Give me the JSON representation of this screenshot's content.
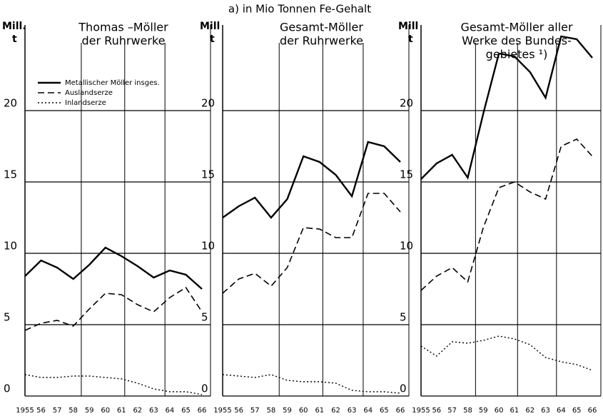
{
  "title": "a) in Mio Tonnen Fe-Gehalt",
  "chart_data": [
    {
      "type": "line",
      "title": [
        "Thomas –Möller",
        "der Ruhrwerke"
      ],
      "ylabel": [
        "Mill.",
        "t"
      ],
      "categories": [
        "1955",
        "56",
        "57",
        "58",
        "59",
        "60",
        "61",
        "62",
        "63",
        "64",
        "65",
        "66"
      ],
      "ylim": [
        0,
        26
      ],
      "yticks": [
        0,
        5,
        10,
        15,
        20
      ],
      "grid": true,
      "legend": "upper left",
      "series": [
        {
          "name": "Metallischer Möller insges.",
          "color": "#000000",
          "dash": "solid",
          "values": [
            8.4,
            9.5,
            9.0,
            8.2,
            9.2,
            10.4,
            9.8,
            9.1,
            8.3,
            8.8,
            8.5,
            7.5
          ]
        },
        {
          "name": "Auslandserze",
          "color": "#000000",
          "dash": "dashed",
          "values": [
            4.6,
            5.1,
            5.3,
            4.9,
            6.1,
            7.2,
            7.1,
            6.4,
            5.9,
            6.9,
            7.6,
            5.9
          ]
        },
        {
          "name": "Inlandserze",
          "color": "#000000",
          "dash": "dotted",
          "values": [
            1.5,
            1.3,
            1.3,
            1.4,
            1.4,
            1.3,
            1.2,
            0.9,
            0.5,
            0.3,
            0.3,
            0.1
          ]
        }
      ]
    },
    {
      "type": "line",
      "title": [
        "Gesamt-Möller",
        "der Ruhrwerke"
      ],
      "ylabel": [
        "Mill",
        "t"
      ],
      "categories": [
        "1955",
        "56",
        "57",
        "58",
        "59",
        "60",
        "61",
        "62",
        "63",
        "64",
        "65",
        "66"
      ],
      "ylim": [
        0,
        26
      ],
      "yticks": [
        0,
        5,
        10,
        15,
        20
      ],
      "grid": true,
      "series": [
        {
          "color": "#000000",
          "dash": "solid",
          "values": [
            12.5,
            13.3,
            13.9,
            12.5,
            13.8,
            16.8,
            16.4,
            15.5,
            14.0,
            17.8,
            17.5,
            16.4
          ]
        },
        {
          "color": "#000000",
          "dash": "dashed",
          "values": [
            7.2,
            8.2,
            8.6,
            7.7,
            9.0,
            11.8,
            11.7,
            11.1,
            11.1,
            14.2,
            14.2,
            12.9
          ]
        },
        {
          "color": "#000000",
          "dash": "dotted",
          "values": [
            1.5,
            1.4,
            1.3,
            1.5,
            1.1,
            1.0,
            1.0,
            0.9,
            0.4,
            0.3,
            0.3,
            0.2
          ]
        }
      ]
    },
    {
      "type": "line",
      "title": [
        "Gesamt-Möller aller",
        "Werke des Bundes-",
        "gebietes ¹)"
      ],
      "ylabel": [
        "Mill",
        "t"
      ],
      "categories": [
        "1955",
        "56",
        "57",
        "58",
        "59",
        "60",
        "61",
        "62",
        "63",
        "64",
        "65",
        "66"
      ],
      "ylim": [
        0,
        26
      ],
      "yticks": [
        0,
        5,
        10,
        15,
        20
      ],
      "grid": true,
      "series": [
        {
          "color": "#000000",
          "dash": "solid",
          "values": [
            15.2,
            16.3,
            16.9,
            15.3,
            19.8,
            24.0,
            23.8,
            22.7,
            20.9,
            25.2,
            25.0,
            23.7
          ]
        },
        {
          "color": "#000000",
          "dash": "dashed",
          "values": [
            7.4,
            8.4,
            9.0,
            8.0,
            11.8,
            14.6,
            15.0,
            14.3,
            13.8,
            17.5,
            18.0,
            16.8
          ]
        },
        {
          "color": "#000000",
          "dash": "dotted",
          "values": [
            3.5,
            2.8,
            3.8,
            3.7,
            3.9,
            4.2,
            4.0,
            3.6,
            2.7,
            2.4,
            2.2,
            1.8
          ]
        }
      ]
    }
  ]
}
